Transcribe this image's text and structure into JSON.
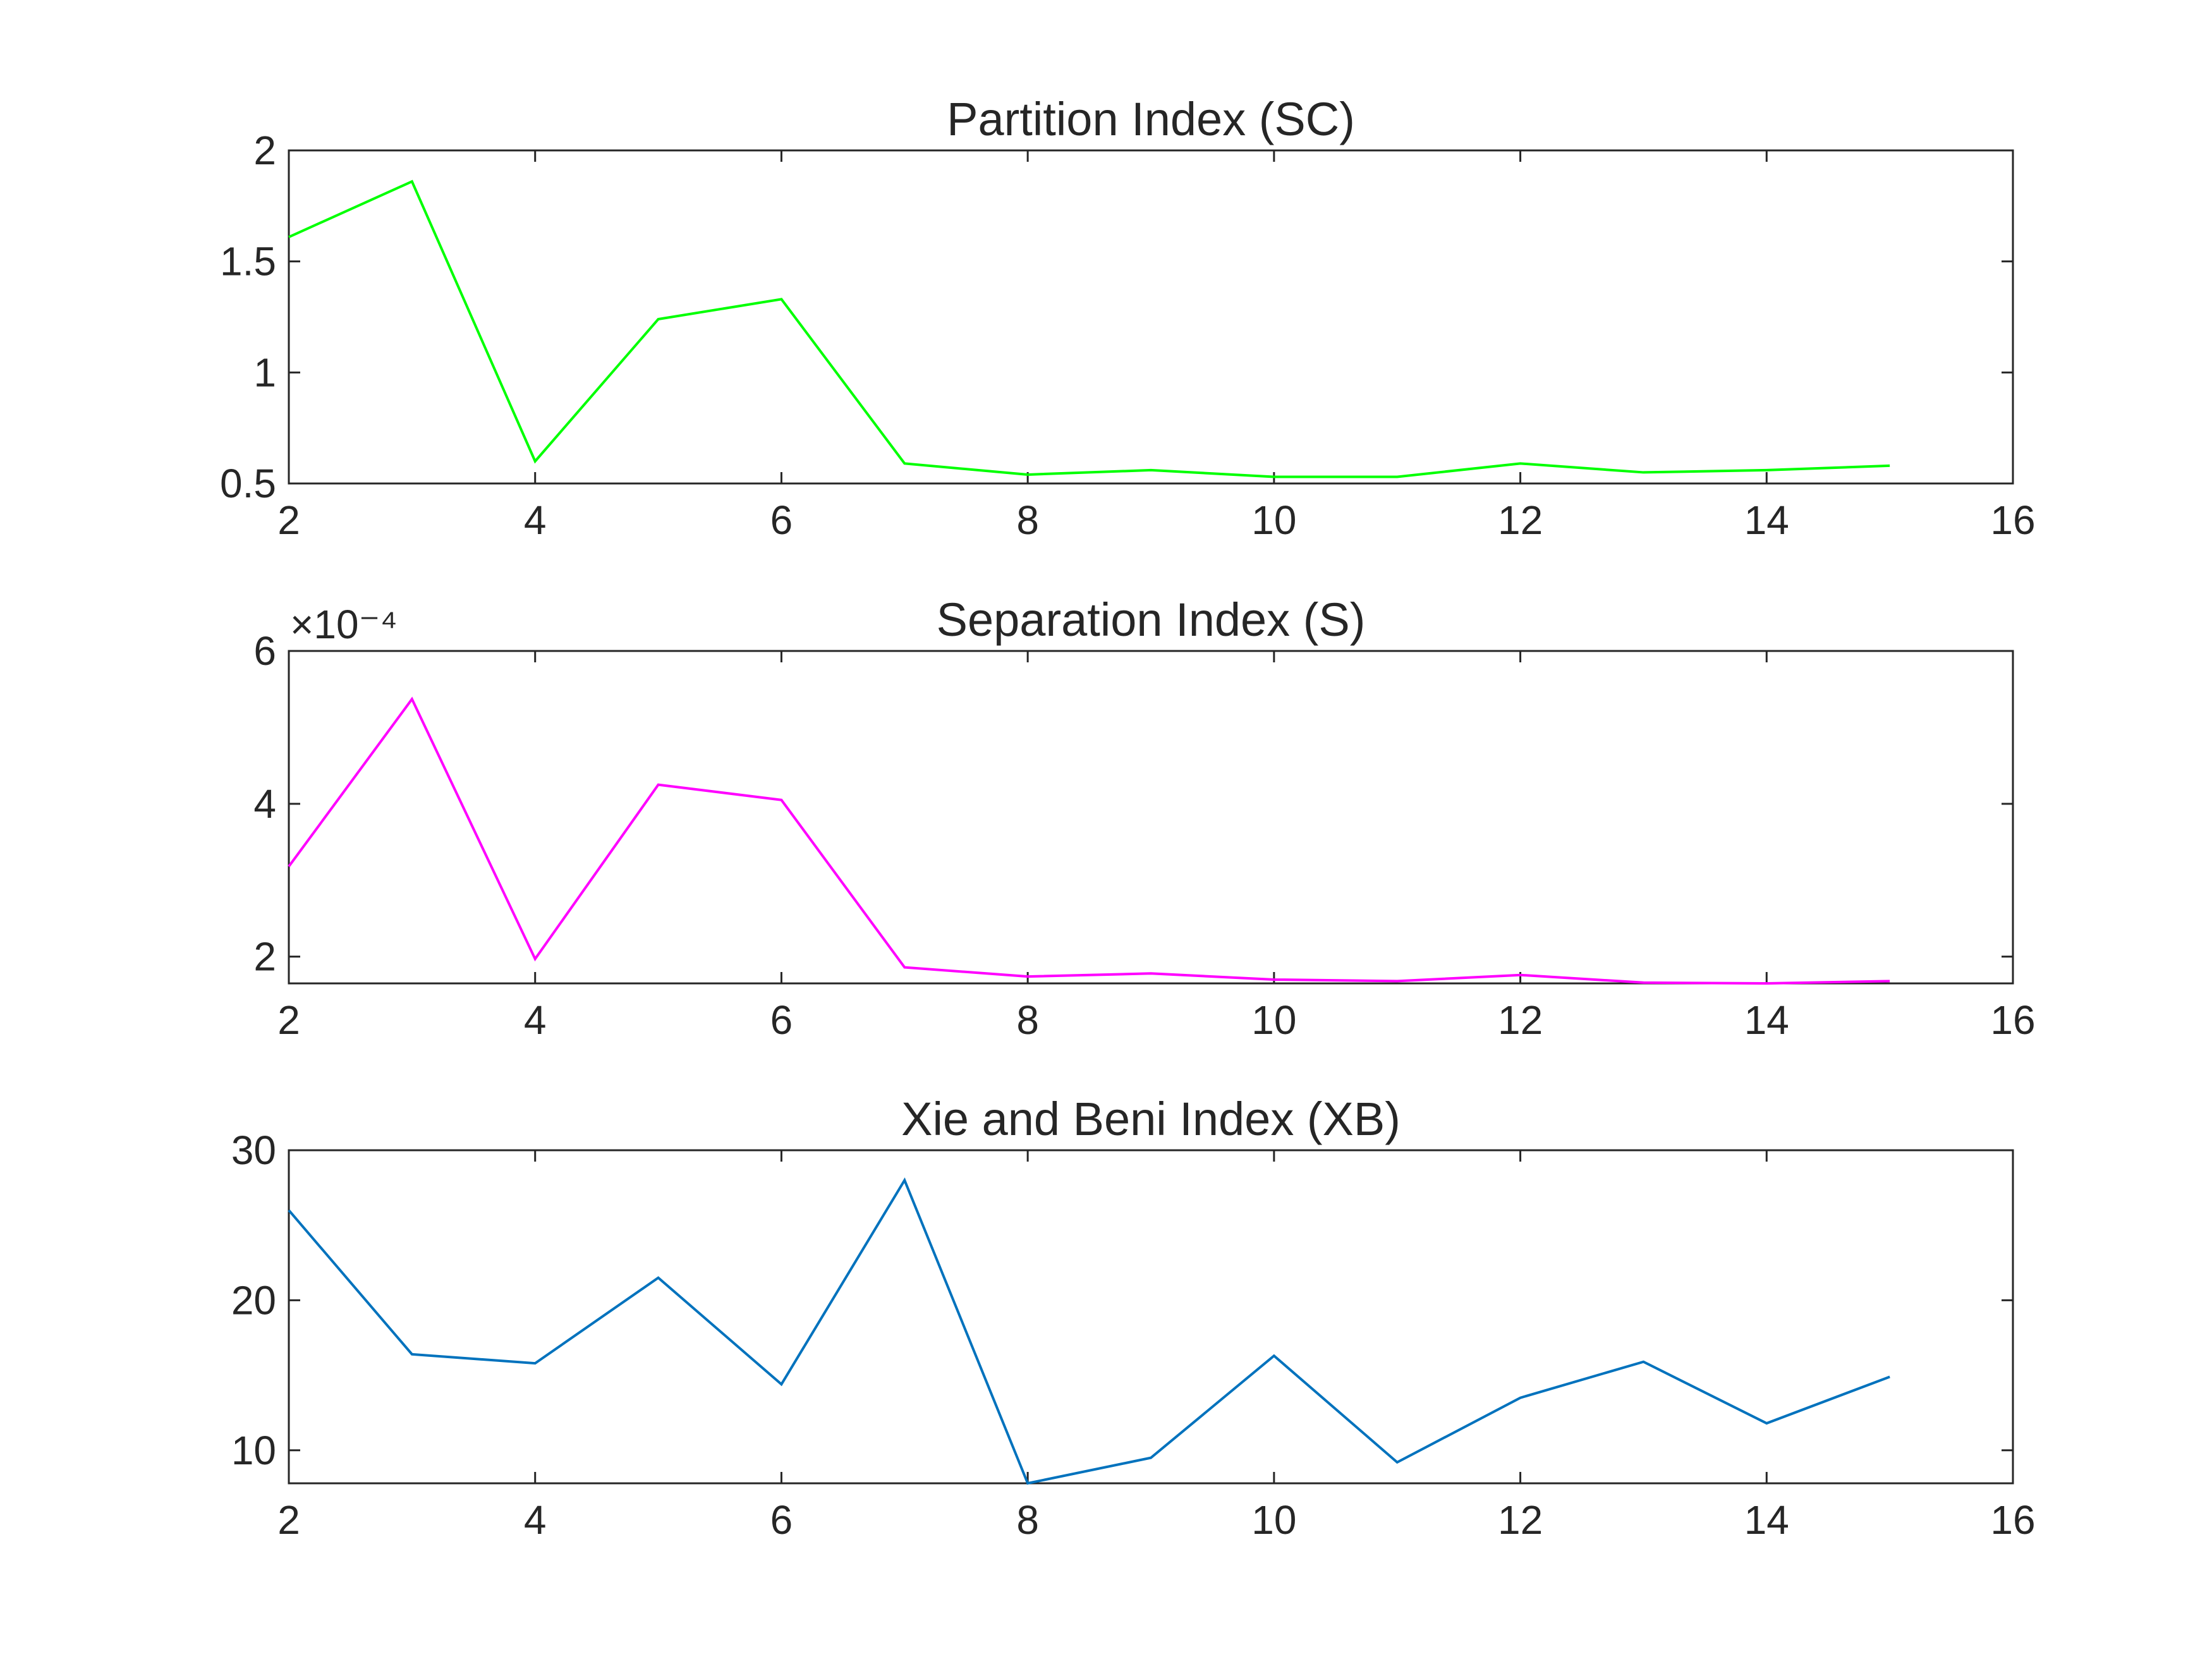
{
  "chart_data": [
    {
      "type": "line",
      "title": "Partition Index (SC)",
      "xlabel": "",
      "ylabel": "",
      "xlim": [
        2,
        16
      ],
      "ylim": [
        0.5,
        2
      ],
      "xticks": [
        "2",
        "4",
        "6",
        "8",
        "10",
        "12",
        "14",
        "16"
      ],
      "yticks": [
        "0.5",
        "1",
        "1.5",
        "2"
      ],
      "ytick_values": [
        0.5,
        1,
        1.5,
        2
      ],
      "exponent_label": "",
      "grid": false,
      "color": "#00ff00",
      "x": [
        2,
        3,
        4,
        5,
        6,
        7,
        8,
        9,
        10,
        11,
        12,
        13,
        14,
        15
      ],
      "y": [
        1.61,
        1.86,
        0.6,
        1.24,
        1.33,
        0.59,
        0.54,
        0.56,
        0.53,
        0.53,
        0.59,
        0.55,
        0.56,
        0.58
      ]
    },
    {
      "type": "line",
      "title": "Separation Index (S)",
      "xlabel": "",
      "ylabel": "",
      "xlim": [
        2,
        16
      ],
      "ylim": [
        1.65,
        6
      ],
      "xticks": [
        "2",
        "4",
        "6",
        "8",
        "10",
        "12",
        "14",
        "16"
      ],
      "yticks": [
        "2",
        "4",
        "6"
      ],
      "ytick_values": [
        2,
        4,
        6
      ],
      "exponent_label": "×10⁻⁴",
      "grid": false,
      "color": "#ff00ff",
      "x": [
        2,
        3,
        4,
        5,
        6,
        7,
        8,
        9,
        10,
        11,
        12,
        13,
        14,
        15
      ],
      "y": [
        3.18,
        5.37,
        1.97,
        4.25,
        4.05,
        1.86,
        1.74,
        1.78,
        1.7,
        1.68,
        1.76,
        1.66,
        1.65,
        1.68
      ]
    },
    {
      "type": "line",
      "title": "Xie and Beni Index (XB)",
      "xlabel": "",
      "ylabel": "",
      "xlim": [
        2,
        16
      ],
      "ylim": [
        7.8,
        30
      ],
      "xticks": [
        "2",
        "4",
        "6",
        "8",
        "10",
        "12",
        "14",
        "16"
      ],
      "yticks": [
        "10",
        "20",
        "30"
      ],
      "ytick_values": [
        10,
        20,
        30
      ],
      "exponent_label": "",
      "grid": false,
      "color": "#0072bd",
      "x": [
        2,
        3,
        4,
        5,
        6,
        7,
        8,
        9,
        10,
        11,
        12,
        13,
        14,
        15
      ],
      "y": [
        26.0,
        16.4,
        15.8,
        21.5,
        14.4,
        28.0,
        7.8,
        9.5,
        16.3,
        9.2,
        13.5,
        15.9,
        11.8,
        14.9
      ]
    }
  ]
}
